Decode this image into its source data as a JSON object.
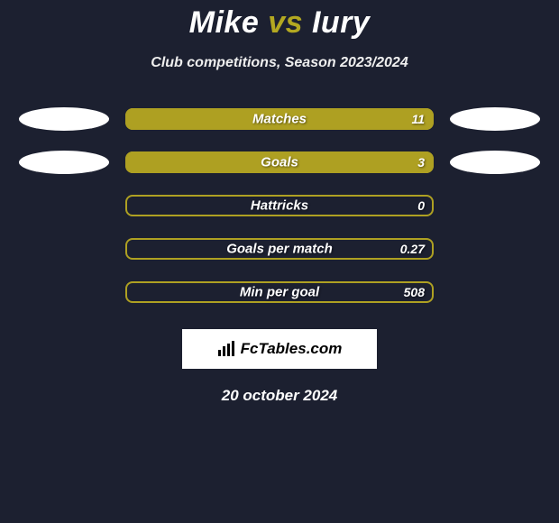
{
  "header": {
    "player1": "Mike",
    "vs": "vs",
    "player2": "Iury",
    "subtitle": "Club competitions, Season 2023/2024"
  },
  "colors": {
    "background": "#1c2030",
    "accent": "#b3a821",
    "bar_fill": "#aea022",
    "bar_border": "#aea022",
    "ellipse": "#ffffff",
    "text": "#ffffff"
  },
  "stats": [
    {
      "label": "Matches",
      "value": "11",
      "fill_pct": 100,
      "left_ellipse": true,
      "right_ellipse": true
    },
    {
      "label": "Goals",
      "value": "3",
      "fill_pct": 100,
      "left_ellipse": true,
      "right_ellipse": true
    },
    {
      "label": "Hattricks",
      "value": "0",
      "fill_pct": 0,
      "left_ellipse": false,
      "right_ellipse": false
    },
    {
      "label": "Goals per match",
      "value": "0.27",
      "fill_pct": 0,
      "left_ellipse": false,
      "right_ellipse": false
    },
    {
      "label": "Min per goal",
      "value": "508",
      "fill_pct": 0,
      "left_ellipse": false,
      "right_ellipse": false
    }
  ],
  "brand": {
    "name": "FcTables.com",
    "icon": "bar-chart-icon"
  },
  "date": "20 october 2024"
}
